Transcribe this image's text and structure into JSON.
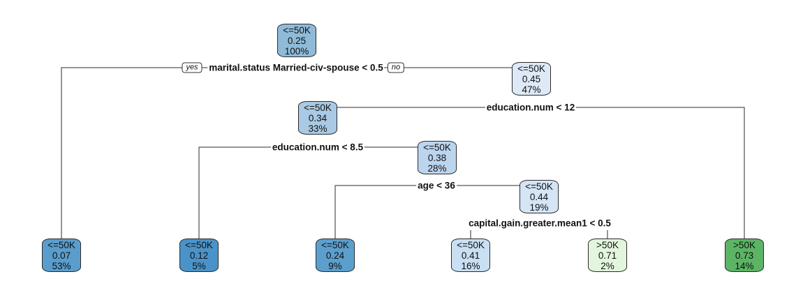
{
  "colors": {
    "fill_1": "#8fbbd9",
    "fill_2": "#dde9f6",
    "fill_3": "#a9c9e4",
    "fill_4": "#bcd5ee",
    "fill_5": "#d4e5f5",
    "fill_6": "#5a9dcc",
    "fill_7": "#4a93c8",
    "fill_8": "#5c9fcd",
    "fill_9": "#c9dff3",
    "fill_10": "#e3f5dc",
    "fill_11": "#5cb565",
    "edge": "#2b2b2b"
  },
  "tree": {
    "nodes": [
      {
        "id": "n1",
        "class": "<=50K",
        "prob": "0.25",
        "pct": "100%",
        "color": "fill_1"
      },
      {
        "id": "n3",
        "class": "<=50K",
        "prob": "0.45",
        "pct": "47%",
        "color": "fill_2"
      },
      {
        "id": "n6",
        "class": "<=50K",
        "prob": "0.34",
        "pct": "33%",
        "color": "fill_3"
      },
      {
        "id": "n13",
        "class": "<=50K",
        "prob": "0.38",
        "pct": "28%",
        "color": "fill_4"
      },
      {
        "id": "n27",
        "class": "<=50K",
        "prob": "0.44",
        "pct": "19%",
        "color": "fill_5"
      },
      {
        "id": "n2",
        "class": "<=50K",
        "prob": "0.07",
        "pct": "53%",
        "color": "fill_6"
      },
      {
        "id": "n12",
        "class": "<=50K",
        "prob": "0.12",
        "pct": "5%",
        "color": "fill_7"
      },
      {
        "id": "n26",
        "class": "<=50K",
        "prob": "0.24",
        "pct": "9%",
        "color": "fill_8"
      },
      {
        "id": "n54",
        "class": "<=50K",
        "prob": "0.41",
        "pct": "16%",
        "color": "fill_9"
      },
      {
        "id": "n55",
        "class": ">50K",
        "prob": "0.71",
        "pct": "2%",
        "color": "fill_10"
      },
      {
        "id": "n7",
        "class": ">50K",
        "prob": "0.73",
        "pct": "14%",
        "color": "fill_11"
      }
    ],
    "splits": [
      {
        "id": "s1",
        "label": "marital.status Married-civ-spouse < 0.5",
        "yes": "yes",
        "no": "no"
      },
      {
        "id": "s3",
        "label": "education.num < 12"
      },
      {
        "id": "s6",
        "label": "education.num < 8.5"
      },
      {
        "id": "s13",
        "label": "age < 36"
      },
      {
        "id": "s27",
        "label": "capital.gain.greater.mean1 < 0.5"
      }
    ]
  }
}
